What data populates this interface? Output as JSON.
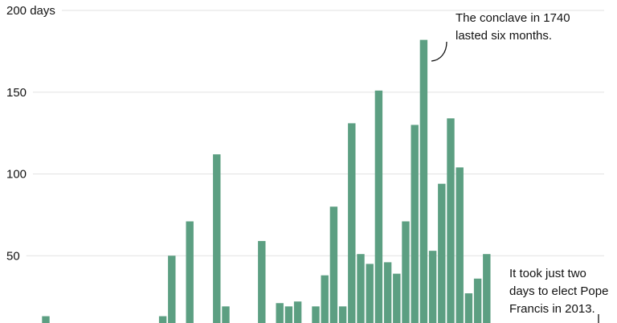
{
  "chart_data": {
    "type": "bar",
    "title": "",
    "xlabel": "",
    "ylabel": "days",
    "ylim": [
      0,
      200
    ],
    "yticks": [
      {
        "value": 200,
        "label": "200 days"
      },
      {
        "value": 150,
        "label": "150"
      },
      {
        "value": 100,
        "label": "100"
      },
      {
        "value": 50,
        "label": "50"
      }
    ],
    "grid": true,
    "bar_color": "#5c9f82",
    "values": [
      13,
      0,
      0,
      0,
      0,
      0,
      0,
      0,
      0,
      0,
      0,
      0,
      0,
      13,
      50,
      0,
      71,
      0,
      0,
      112,
      19,
      0,
      0,
      0,
      59,
      0,
      21,
      19,
      22,
      0,
      19,
      38,
      80,
      19,
      131,
      51,
      45,
      151,
      46,
      39,
      71,
      130,
      182,
      53,
      94,
      134,
      104,
      27,
      36,
      51,
      0,
      0,
      0,
      0,
      0,
      0,
      0,
      0,
      0,
      0,
      0,
      2
    ],
    "annotations": [
      {
        "lines": [
          "The conclave in 1740",
          "lasted six months."
        ],
        "bar_index": 42
      },
      {
        "lines": [
          "It took just two",
          "days to elect Pope",
          "Francis in 2013."
        ],
        "bar_index": 61
      }
    ]
  }
}
